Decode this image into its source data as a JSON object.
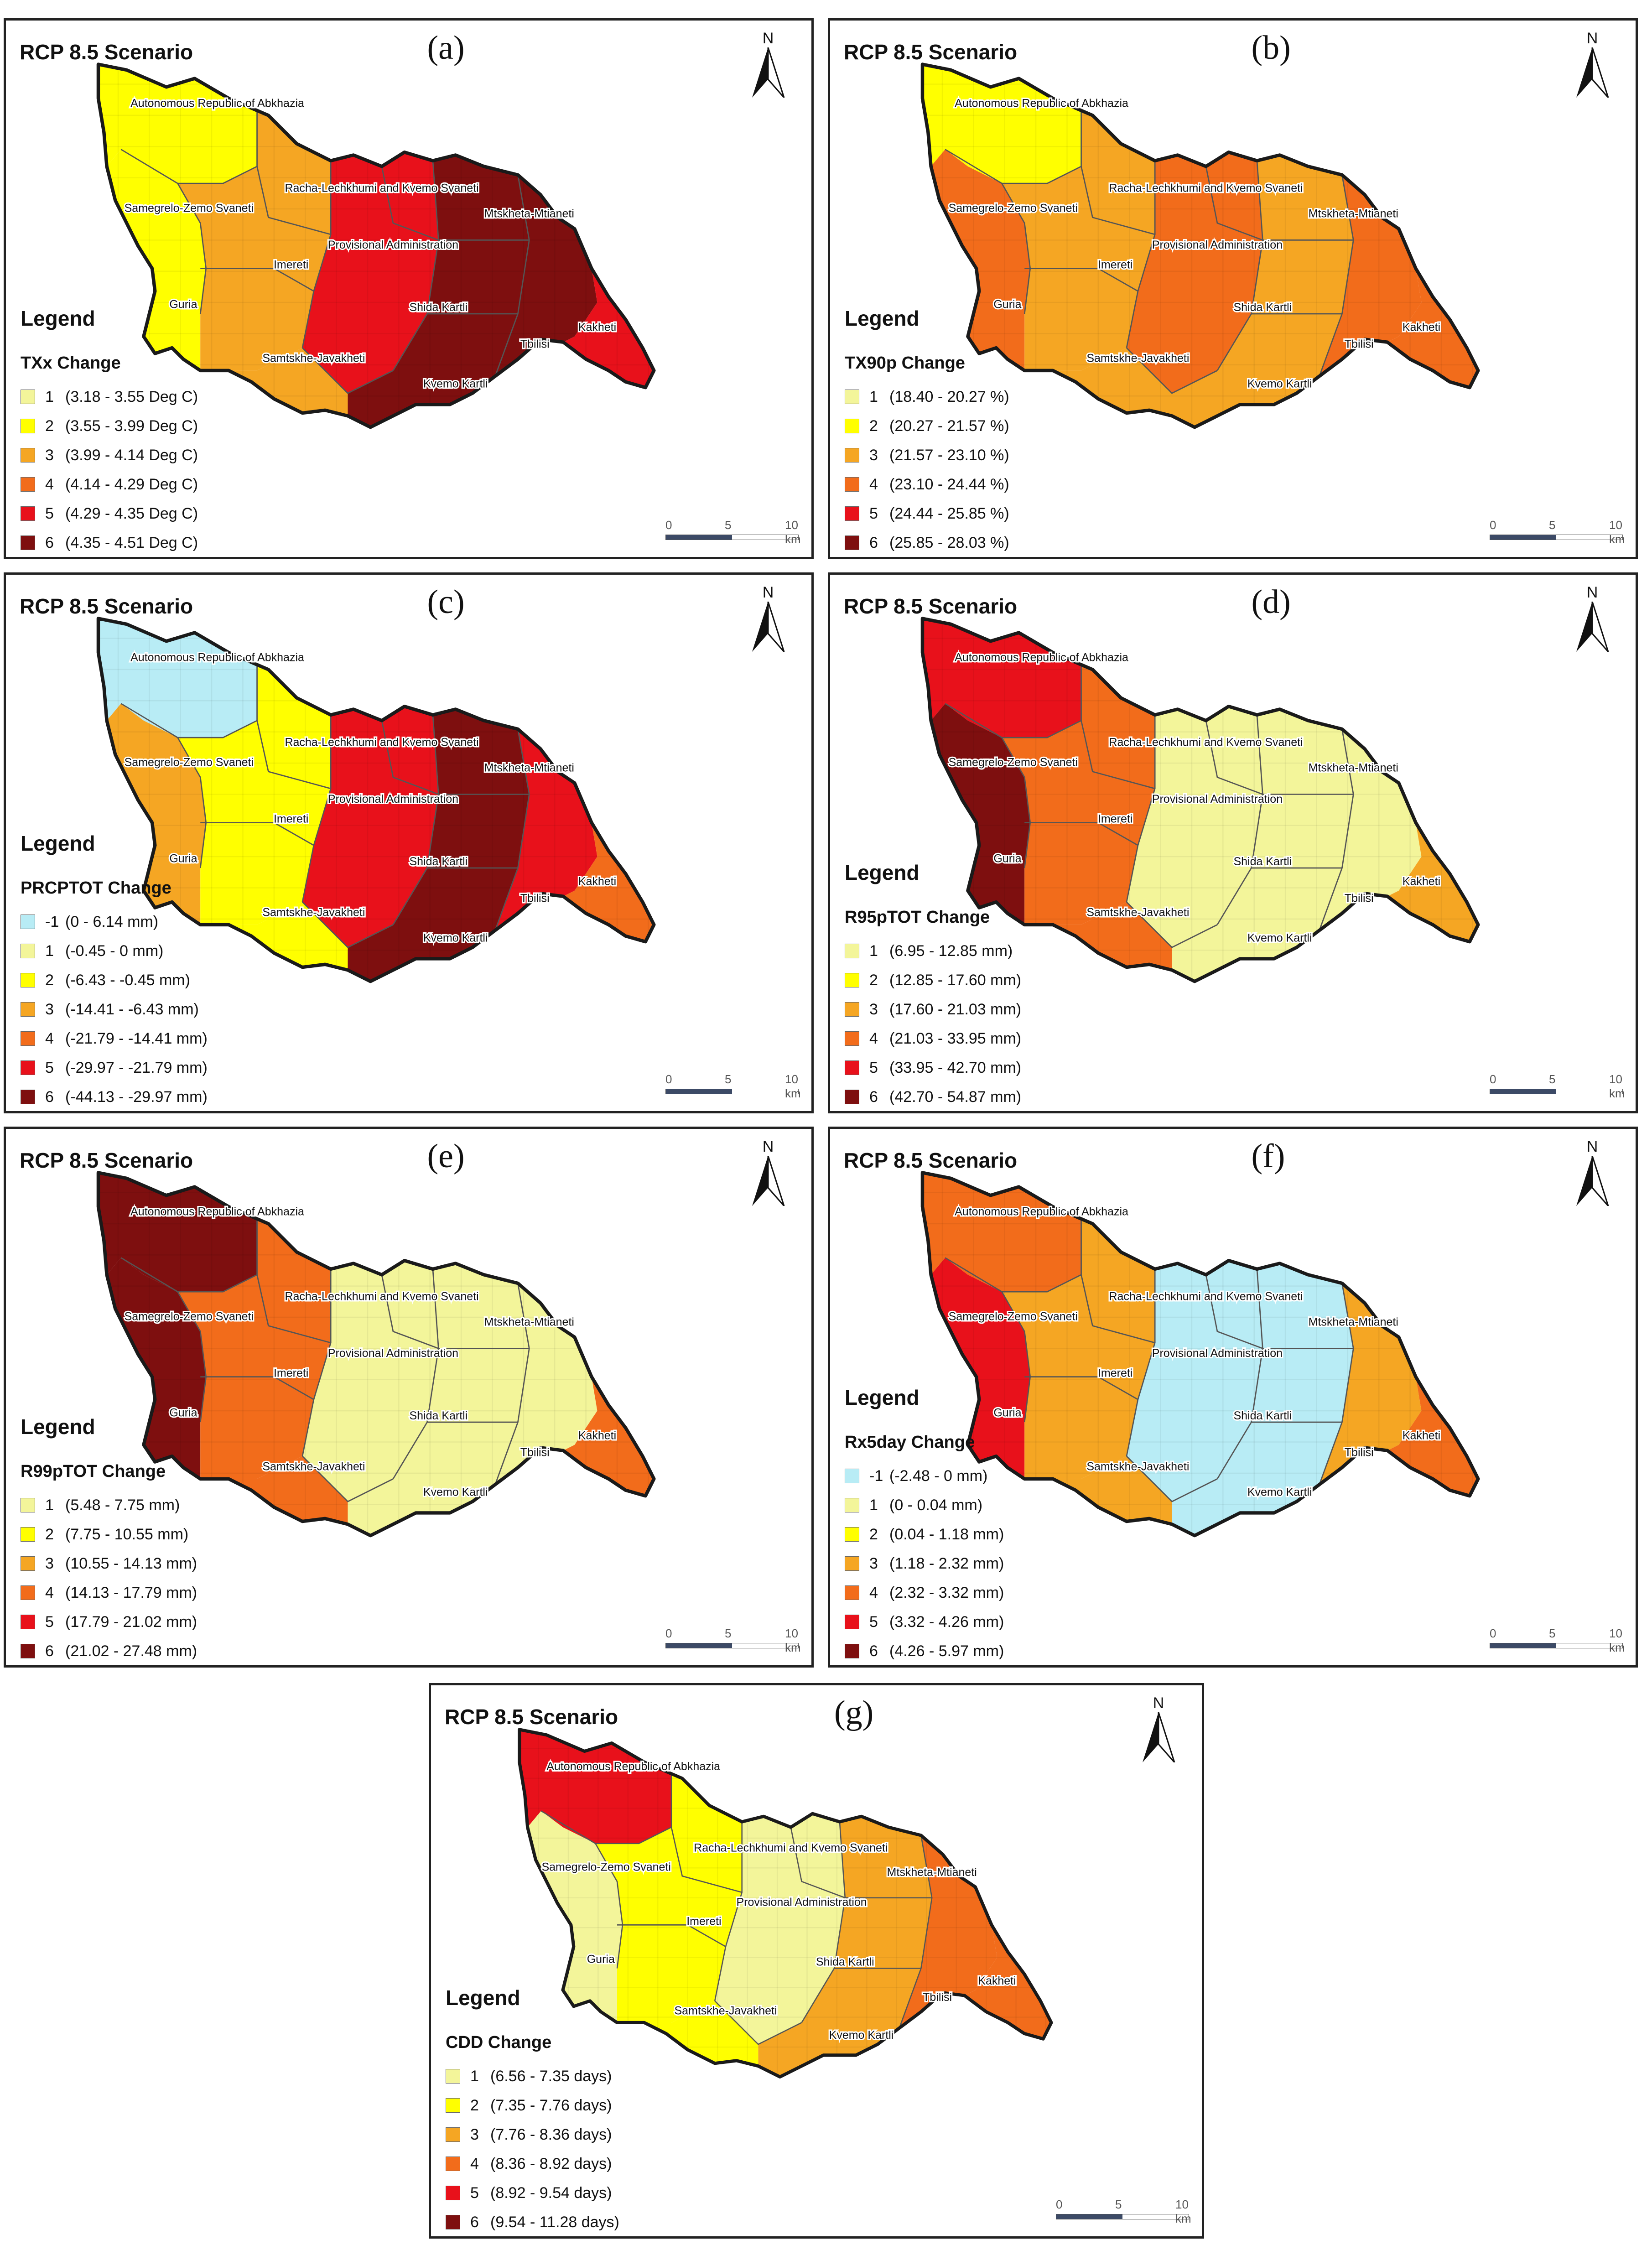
{
  "scenario_title": "RCP 8.5 Scenario",
  "north_label": "N",
  "legend_title": "Legend",
  "scale": {
    "zero": "0",
    "mid": "5",
    "end": "10 km"
  },
  "regions": {
    "abkhazia": "Autonomous Republic of Abkhazia",
    "racha": "Racha-Lechkhumi and Kvemo Svaneti",
    "samegrelo": "Samegrelo-Zemo Svaneti",
    "provisional": "Provisional Administration",
    "imereti": "Imereti",
    "mtskheta": "Mtskheta-Mtianeti",
    "guria": "Guria",
    "shida": "Shida Kartli",
    "samtskhe": "Samtskhe-Javakheti",
    "kvemo": "Kvemo Kartli",
    "tbilisi": "Tbilisi",
    "kakheti": "Kakheti"
  },
  "colors": {
    "neg": "#b8ecf5",
    "c1": "#f3f59a",
    "c2": "#ffff00",
    "c3": "#f5a623",
    "c4": "#f26c1b",
    "c5": "#e8111b",
    "c6": "#7e0f0f"
  },
  "panels": [
    {
      "id": "a",
      "letter": "(a)",
      "variable": "TXx Change",
      "classes": [
        {
          "code": "1",
          "range": "(3.18 - 3.55 Deg C)",
          "color": "#f3f59a"
        },
        {
          "code": "2",
          "range": "(3.55 - 3.99 Deg C)",
          "color": "#ffff00"
        },
        {
          "code": "3",
          "range": "(3.99 - 4.14 Deg C)",
          "color": "#f5a623"
        },
        {
          "code": "4",
          "range": "(4.14 - 4.29 Deg C)",
          "color": "#f26c1b"
        },
        {
          "code": "5",
          "range": "(4.29 - 4.35 Deg C)",
          "color": "#e8111b"
        },
        {
          "code": "6",
          "range": "(4.35 - 4.51 Deg C)",
          "color": "#7e0f0f"
        }
      ],
      "zones": {
        "nw": 2,
        "w": 2,
        "c_w": 3,
        "c": 5,
        "c_e": 6,
        "e": 6,
        "se": 5
      }
    },
    {
      "id": "b",
      "letter": "(b)",
      "variable": "TX90p Change",
      "classes": [
        {
          "code": "1",
          "range": "(18.40 - 20.27 %)",
          "color": "#f3f59a"
        },
        {
          "code": "2",
          "range": "(20.27 - 21.57 %)",
          "color": "#ffff00"
        },
        {
          "code": "3",
          "range": "(21.57 - 23.10 %)",
          "color": "#f5a623"
        },
        {
          "code": "4",
          "range": "(23.10 - 24.44 %)",
          "color": "#f26c1b"
        },
        {
          "code": "5",
          "range": "(24.44 - 25.85 %)",
          "color": "#e8111b"
        },
        {
          "code": "6",
          "range": "(25.85 - 28.03 %)",
          "color": "#7e0f0f"
        }
      ],
      "zones": {
        "nw": 2,
        "w": 4,
        "c_w": 3,
        "c": 4,
        "c_e": 3,
        "e": 4,
        "se": 4
      }
    },
    {
      "id": "c",
      "letter": "(c)",
      "variable": "PRCPTOT Change",
      "classes": [
        {
          "code": "-1",
          "range": "(0 - 6.14 mm)",
          "color": "#b8ecf5"
        },
        {
          "code": "1",
          "range": "(-0.45 - 0 mm)",
          "color": "#f3f59a"
        },
        {
          "code": "2",
          "range": "(-6.43 - -0.45 mm)",
          "color": "#ffff00"
        },
        {
          "code": "3",
          "range": "(-14.41 - -6.43 mm)",
          "color": "#f5a623"
        },
        {
          "code": "4",
          "range": "(-21.79 - -14.41 mm)",
          "color": "#f26c1b"
        },
        {
          "code": "5",
          "range": "(-29.97 - -21.79 mm)",
          "color": "#e8111b"
        },
        {
          "code": "6",
          "range": "(-44.13 - -29.97 mm)",
          "color": "#7e0f0f"
        }
      ],
      "zones": {
        "nw": -1,
        "w": 3,
        "c_w": 2,
        "c": 5,
        "c_e": 6,
        "e": 5,
        "se": 4
      }
    },
    {
      "id": "d",
      "letter": "(d)",
      "variable": "R95pTOT Change",
      "classes": [
        {
          "code": "1",
          "range": "(6.95 - 12.85 mm)",
          "color": "#f3f59a"
        },
        {
          "code": "2",
          "range": "(12.85 - 17.60 mm)",
          "color": "#ffff00"
        },
        {
          "code": "3",
          "range": "(17.60 - 21.03 mm)",
          "color": "#f5a623"
        },
        {
          "code": "4",
          "range": "(21.03 - 33.95 mm)",
          "color": "#f26c1b"
        },
        {
          "code": "5",
          "range": "(33.95 - 42.70 mm)",
          "color": "#e8111b"
        },
        {
          "code": "6",
          "range": "(42.70 - 54.87 mm)",
          "color": "#7e0f0f"
        }
      ],
      "zones": {
        "nw": 5,
        "w": 6,
        "c_w": 4,
        "c": 1,
        "c_e": 1,
        "e": 1,
        "se": 3
      }
    },
    {
      "id": "e",
      "letter": "(e)",
      "variable": "R99pTOT Change",
      "classes": [
        {
          "code": "1",
          "range": "(5.48 - 7.75 mm)",
          "color": "#f3f59a"
        },
        {
          "code": "2",
          "range": "(7.75 - 10.55 mm)",
          "color": "#ffff00"
        },
        {
          "code": "3",
          "range": "(10.55 - 14.13 mm)",
          "color": "#f5a623"
        },
        {
          "code": "4",
          "range": "(14.13 - 17.79 mm)",
          "color": "#f26c1b"
        },
        {
          "code": "5",
          "range": "(17.79 - 21.02 mm)",
          "color": "#e8111b"
        },
        {
          "code": "6",
          "range": "(21.02 - 27.48 mm)",
          "color": "#7e0f0f"
        }
      ],
      "zones": {
        "nw": 6,
        "w": 6,
        "c_w": 4,
        "c": 1,
        "c_e": 1,
        "e": 1,
        "se": 4
      }
    },
    {
      "id": "f",
      "letter": "(f)",
      "variable": "Rx5day Change",
      "classes": [
        {
          "code": "-1",
          "range": "(-2.48 - 0 mm)",
          "color": "#b8ecf5"
        },
        {
          "code": "1",
          "range": "(0 - 0.04 mm)",
          "color": "#f3f59a"
        },
        {
          "code": "2",
          "range": "(0.04 - 1.18 mm)",
          "color": "#ffff00"
        },
        {
          "code": "3",
          "range": "(1.18 - 2.32 mm)",
          "color": "#f5a623"
        },
        {
          "code": "4",
          "range": "(2.32 - 3.32 mm)",
          "color": "#f26c1b"
        },
        {
          "code": "5",
          "range": "(3.32 - 4.26 mm)",
          "color": "#e8111b"
        },
        {
          "code": "6",
          "range": "(4.26 - 5.97 mm)",
          "color": "#7e0f0f"
        }
      ],
      "zones": {
        "nw": 4,
        "w": 5,
        "c_w": 3,
        "c": -1,
        "c_e": -1,
        "e": 3,
        "se": 4
      }
    },
    {
      "id": "g",
      "letter": "(g)",
      "variable": "CDD Change",
      "classes": [
        {
          "code": "1",
          "range": "(6.56 - 7.35 days)",
          "color": "#f3f59a"
        },
        {
          "code": "2",
          "range": "(7.35 - 7.76 days)",
          "color": "#ffff00"
        },
        {
          "code": "3",
          "range": "(7.76 - 8.36 days)",
          "color": "#f5a623"
        },
        {
          "code": "4",
          "range": "(8.36 - 8.92 days)",
          "color": "#f26c1b"
        },
        {
          "code": "5",
          "range": "(8.92 - 9.54 days)",
          "color": "#e8111b"
        },
        {
          "code": "6",
          "range": "(9.54 - 11.28 days)",
          "color": "#7e0f0f"
        }
      ],
      "zones": {
        "nw": 5,
        "w": 1,
        "c_w": 2,
        "c": 1,
        "c_e": 3,
        "e": 4,
        "se": 4
      }
    }
  ]
}
